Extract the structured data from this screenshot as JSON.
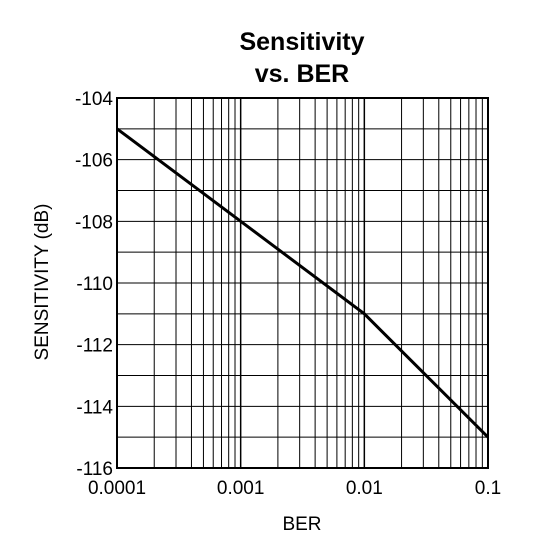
{
  "chart_data": {
    "type": "line",
    "title": [
      "Sensitivity",
      "vs. BER"
    ],
    "xlabel": "BER",
    "ylabel": "SENSITIVITY (dB)",
    "x_scale": "log",
    "xlim": [
      0.0001,
      0.1
    ],
    "ylim": [
      -116,
      -104
    ],
    "x_ticks": [
      "0.0001",
      "0.001",
      "0.01",
      "0.1"
    ],
    "y_ticks": [
      "-104",
      "-106",
      "-108",
      "-110",
      "-112",
      "-114",
      "-116"
    ],
    "grid": true,
    "series": [
      {
        "x": [
          0.0001,
          0.001,
          0.01,
          0.1
        ],
        "y": [
          -105,
          -108,
          -111,
          -115
        ]
      }
    ]
  }
}
